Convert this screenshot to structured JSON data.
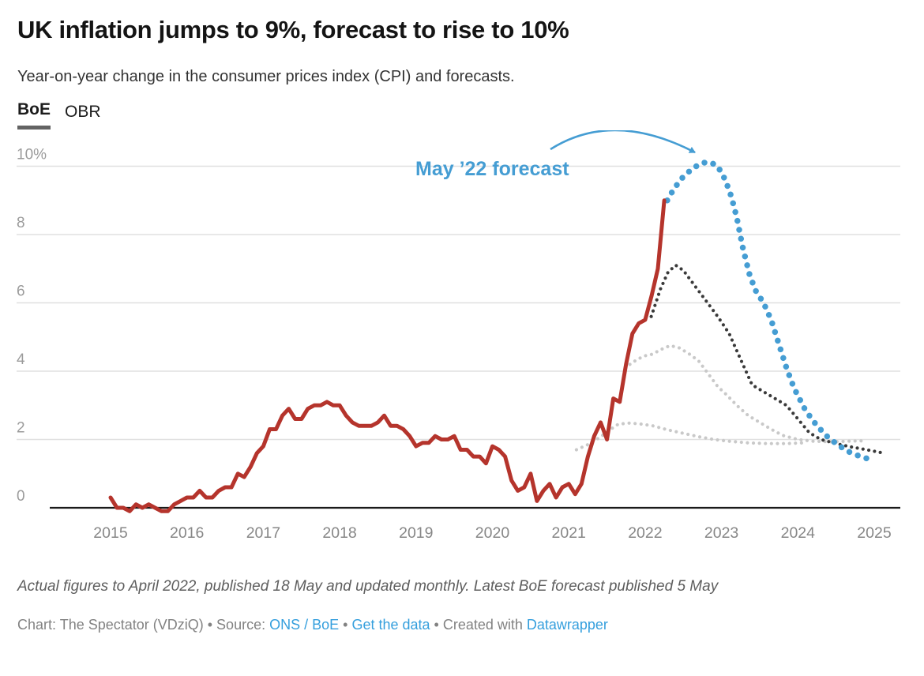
{
  "header": {
    "title": "UK inflation jumps to 9%, forecast to rise to 10%",
    "subtitle": "Year-on-year change in the consumer prices index (CPI) and forecasts.",
    "tabs": [
      {
        "label": "BoE",
        "active": true
      },
      {
        "label": "OBR",
        "active": false
      }
    ]
  },
  "annotation": {
    "label": "May ’22 forecast"
  },
  "footer": {
    "note": "Actual figures to April 2022, published 18 May and updated monthly. Latest BoE forecast published 5 May",
    "byline_prefix": "Chart: The Spectator (VDziQ) • Source: ",
    "source_link": "ONS / BoE",
    "sep1": " • ",
    "get_data_link": "Get the data",
    "sep2": " • Created with ",
    "tool_link": "Datawrapper"
  },
  "colors": {
    "actual_red": "#b5342c",
    "accent_blue": "#459dd3",
    "forecast_dark": "#3a3a3a",
    "forecast_light": "#c9c9c9",
    "link_blue": "#359fdd"
  },
  "chart_data": {
    "type": "line",
    "title": "UK inflation jumps to 9%, forecast to rise to 10%",
    "xlabel": "",
    "ylabel": "",
    "xlim": [
      2014.55,
      2025.35
    ],
    "ylim": [
      0,
      10.5
    ],
    "grid": true,
    "legend_position": "top-left-tabs",
    "grid_color": "#e0e0e0",
    "axis_color": "#1a1a1a",
    "y_tick_color": "#9b9b9b",
    "x_tick_color": "#878787",
    "y_ticks": [
      {
        "v": 0,
        "label": "0"
      },
      {
        "v": 2,
        "label": "2"
      },
      {
        "v": 4,
        "label": "4"
      },
      {
        "v": 6,
        "label": "6"
      },
      {
        "v": 8,
        "label": "8"
      },
      {
        "v": 10,
        "label": "10%"
      }
    ],
    "x_ticks": [
      {
        "v": 2015,
        "label": "2015"
      },
      {
        "v": 2016,
        "label": "2016"
      },
      {
        "v": 2017,
        "label": "2017"
      },
      {
        "v": 2018,
        "label": "2018"
      },
      {
        "v": 2019,
        "label": "2019"
      },
      {
        "v": 2020,
        "label": "2020"
      },
      {
        "v": 2021,
        "label": "2021"
      },
      {
        "v": 2022,
        "label": "2022"
      },
      {
        "v": 2023,
        "label": "2023"
      },
      {
        "v": 2024,
        "label": "2024"
      },
      {
        "v": 2025,
        "label": "2025"
      }
    ],
    "series": [
      {
        "id": "boe-earlier-forecast-light-b",
        "name": "earlier BoE forecast (light, flat ~2%)",
        "color": "#c9c9c9",
        "width": 4.2,
        "dash": "0.01 7.6",
        "points": [
          [
            2021.1,
            1.7
          ],
          [
            2021.25,
            1.85
          ],
          [
            2021.4,
            2.05
          ],
          [
            2021.55,
            2.3
          ],
          [
            2021.65,
            2.45
          ],
          [
            2021.8,
            2.48
          ],
          [
            2021.95,
            2.45
          ],
          [
            2022.1,
            2.4
          ],
          [
            2022.3,
            2.28
          ],
          [
            2022.5,
            2.18
          ],
          [
            2022.7,
            2.08
          ],
          [
            2022.9,
            2.0
          ],
          [
            2023.1,
            1.95
          ],
          [
            2023.35,
            1.9
          ],
          [
            2023.6,
            1.88
          ],
          [
            2023.85,
            1.88
          ],
          [
            2024.07,
            1.9
          ]
        ]
      },
      {
        "id": "boe-earlier-forecast-light-a",
        "name": "earlier BoE forecast (light, peak ~4.75%)",
        "color": "#c9c9c9",
        "width": 4.2,
        "dash": "0.01 7.6",
        "points": [
          [
            2021.8,
            4.2
          ],
          [
            2021.9,
            4.35
          ],
          [
            2022.0,
            4.45
          ],
          [
            2022.1,
            4.5
          ],
          [
            2022.2,
            4.63
          ],
          [
            2022.33,
            4.75
          ],
          [
            2022.45,
            4.68
          ],
          [
            2022.58,
            4.5
          ],
          [
            2022.7,
            4.3
          ],
          [
            2022.8,
            4.0
          ],
          [
            2022.95,
            3.55
          ],
          [
            2023.07,
            3.3
          ],
          [
            2023.2,
            3.0
          ],
          [
            2023.35,
            2.7
          ],
          [
            2023.5,
            2.5
          ],
          [
            2023.65,
            2.3
          ],
          [
            2023.8,
            2.12
          ],
          [
            2024.0,
            2.0
          ],
          [
            2024.2,
            1.95
          ],
          [
            2024.45,
            1.93
          ],
          [
            2024.65,
            1.95
          ],
          [
            2024.85,
            1.96
          ]
        ]
      },
      {
        "id": "boe-earlier-forecast-dark",
        "name": "earlier BoE forecast (dark, peak ~7.1%)",
        "color": "#3a3a3a",
        "width": 4.2,
        "dash": "0.01 7.4",
        "points": [
          [
            2022.08,
            5.6
          ],
          [
            2022.2,
            6.4
          ],
          [
            2022.3,
            6.9
          ],
          [
            2022.4,
            7.1
          ],
          [
            2022.5,
            6.95
          ],
          [
            2022.65,
            6.5
          ],
          [
            2022.8,
            6.05
          ],
          [
            2022.95,
            5.6
          ],
          [
            2023.1,
            5.1
          ],
          [
            2023.2,
            4.6
          ],
          [
            2023.3,
            4.1
          ],
          [
            2023.4,
            3.6
          ],
          [
            2023.55,
            3.4
          ],
          [
            2023.7,
            3.2
          ],
          [
            2023.85,
            3.0
          ],
          [
            2024.0,
            2.6
          ],
          [
            2024.15,
            2.2
          ],
          [
            2024.3,
            2.0
          ],
          [
            2024.5,
            1.88
          ],
          [
            2024.7,
            1.78
          ],
          [
            2024.9,
            1.7
          ],
          [
            2025.08,
            1.62
          ]
        ]
      },
      {
        "id": "boe-may-22-forecast",
        "name": "May ’22 forecast",
        "color": "#459dd3",
        "width": 7.5,
        "dash": "0.01 11.5",
        "points": [
          [
            2022.29,
            9.0
          ],
          [
            2022.38,
            9.35
          ],
          [
            2022.5,
            9.7
          ],
          [
            2022.63,
            9.95
          ],
          [
            2022.75,
            10.1
          ],
          [
            2022.85,
            10.12
          ],
          [
            2022.95,
            10.0
          ],
          [
            2023.05,
            9.6
          ],
          [
            2023.13,
            9.1
          ],
          [
            2023.2,
            8.5
          ],
          [
            2023.28,
            7.6
          ],
          [
            2023.37,
            6.8
          ],
          [
            2023.45,
            6.35
          ],
          [
            2023.55,
            6.0
          ],
          [
            2023.65,
            5.5
          ],
          [
            2023.75,
            4.8
          ],
          [
            2023.85,
            4.1
          ],
          [
            2023.95,
            3.5
          ],
          [
            2024.1,
            2.85
          ],
          [
            2024.25,
            2.4
          ],
          [
            2024.4,
            2.05
          ],
          [
            2024.55,
            1.8
          ],
          [
            2024.7,
            1.6
          ],
          [
            2024.85,
            1.48
          ],
          [
            2025.0,
            1.38
          ]
        ]
      },
      {
        "id": "cpi-actual",
        "name": "CPI actual (monthly, Jan 2015 – Apr 2022)",
        "color": "#b5342c",
        "width": 5,
        "dash": null,
        "start_year": 2015,
        "values": [
          0.3,
          0.0,
          0.0,
          -0.1,
          0.1,
          0.0,
          0.1,
          0.0,
          -0.1,
          -0.1,
          0.1,
          0.2,
          0.3,
          0.3,
          0.5,
          0.3,
          0.3,
          0.5,
          0.6,
          0.6,
          1.0,
          0.9,
          1.2,
          1.6,
          1.8,
          2.3,
          2.3,
          2.7,
          2.9,
          2.6,
          2.6,
          2.9,
          3.0,
          3.0,
          3.1,
          3.0,
          3.0,
          2.7,
          2.5,
          2.4,
          2.4,
          2.4,
          2.5,
          2.7,
          2.4,
          2.4,
          2.3,
          2.1,
          1.8,
          1.9,
          1.9,
          2.1,
          2.0,
          2.0,
          2.1,
          1.7,
          1.7,
          1.5,
          1.5,
          1.3,
          1.8,
          1.7,
          1.5,
          0.8,
          0.5,
          0.6,
          1.0,
          0.2,
          0.5,
          0.7,
          0.3,
          0.6,
          0.7,
          0.4,
          0.7,
          1.5,
          2.1,
          2.5,
          2.0,
          3.2,
          3.1,
          4.2,
          5.1,
          5.4,
          5.5,
          6.2,
          7.0,
          9.0
        ]
      }
    ]
  }
}
